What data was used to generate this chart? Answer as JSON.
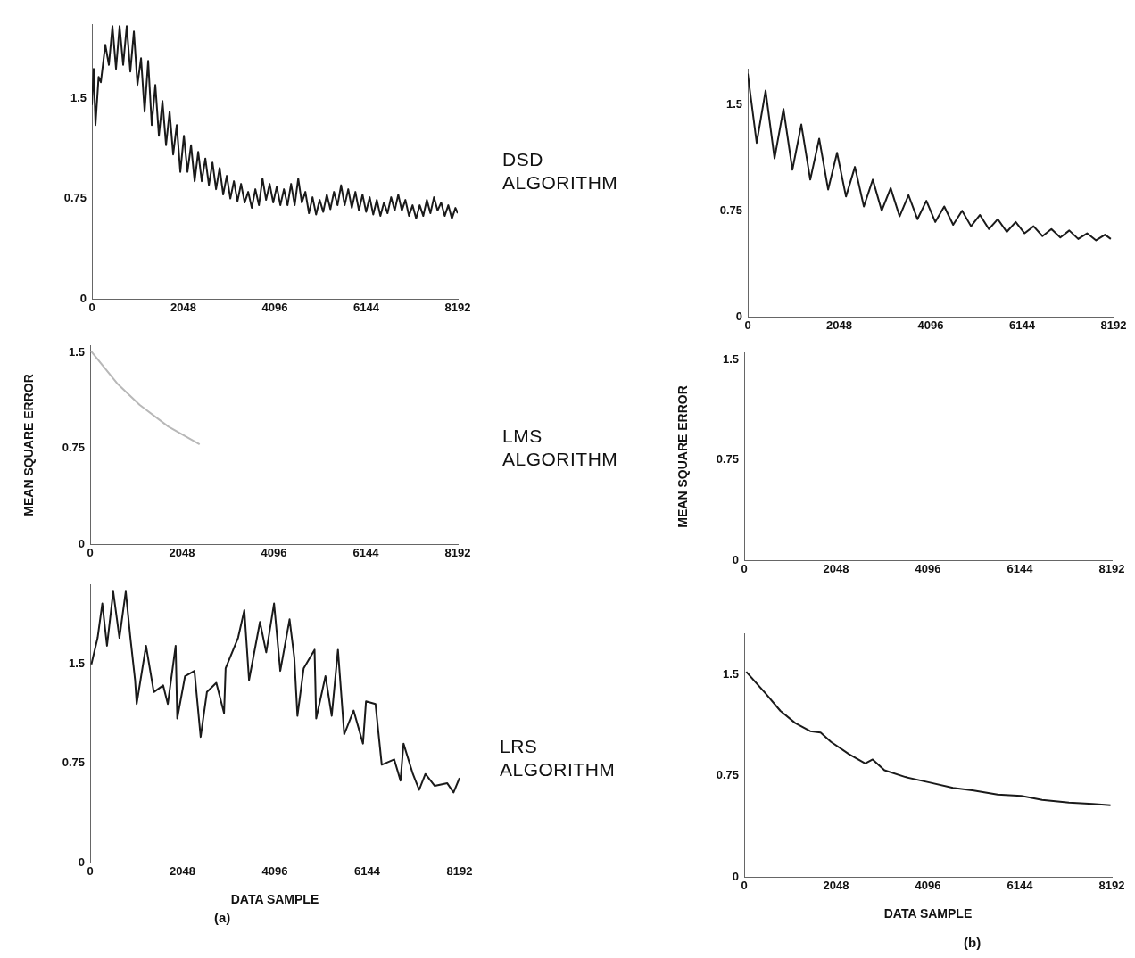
{
  "chart_data": [
    {
      "type": "line",
      "annotations": [
        "DSD ALGORITHM"
      ],
      "xlim": [
        0,
        8192
      ],
      "xticks": [
        0,
        2048,
        4096,
        6144,
        8192
      ],
      "ylim": [
        0,
        2.05
      ],
      "yticks": [
        0,
        0.75,
        1.5
      ],
      "series": [
        {
          "color": "#1a1a1a",
          "x": [
            0,
            40,
            80,
            150,
            200,
            300,
            380,
            460,
            540,
            620,
            700,
            780,
            860,
            940,
            1020,
            1100,
            1180,
            1260,
            1340,
            1420,
            1500,
            1580,
            1660,
            1740,
            1820,
            1900,
            1980,
            2060,
            2140,
            2220,
            2300,
            2380,
            2460,
            2540,
            2620,
            2700,
            2780,
            2860,
            2940,
            3020,
            3100,
            3180,
            3260,
            3340,
            3420,
            3500,
            3580,
            3660,
            3740,
            3820,
            3900,
            3980,
            4060,
            4140,
            4220,
            4300,
            4380,
            4460,
            4540,
            4620,
            4700,
            4780,
            4860,
            4940,
            5020,
            5100,
            5180,
            5260,
            5340,
            5420,
            5500,
            5580,
            5660,
            5740,
            5820,
            5900,
            5980,
            6060,
            6140,
            6220,
            6300,
            6380,
            6460,
            6540,
            6620,
            6700,
            6780,
            6860,
            6940,
            7020,
            7100,
            7180,
            7260,
            7340,
            7420,
            7500,
            7580,
            7660,
            7740,
            7820,
            7900,
            7980,
            8060,
            8140,
            8192
          ],
          "values": [
            1.45,
            1.72,
            1.3,
            1.66,
            1.62,
            1.9,
            1.75,
            2.04,
            1.72,
            2.04,
            1.75,
            2.04,
            1.7,
            2.0,
            1.6,
            1.8,
            1.4,
            1.78,
            1.3,
            1.6,
            1.22,
            1.48,
            1.15,
            1.4,
            1.08,
            1.3,
            0.95,
            1.22,
            0.95,
            1.15,
            0.88,
            1.1,
            0.88,
            1.05,
            0.85,
            1.02,
            0.82,
            0.98,
            0.78,
            0.92,
            0.75,
            0.88,
            0.73,
            0.86,
            0.72,
            0.8,
            0.68,
            0.82,
            0.7,
            0.9,
            0.74,
            0.86,
            0.72,
            0.84,
            0.7,
            0.82,
            0.7,
            0.86,
            0.7,
            0.9,
            0.72,
            0.8,
            0.64,
            0.76,
            0.63,
            0.74,
            0.65,
            0.78,
            0.67,
            0.8,
            0.7,
            0.85,
            0.7,
            0.82,
            0.68,
            0.8,
            0.66,
            0.78,
            0.65,
            0.76,
            0.63,
            0.74,
            0.62,
            0.72,
            0.64,
            0.76,
            0.66,
            0.78,
            0.66,
            0.74,
            0.62,
            0.7,
            0.6,
            0.7,
            0.62,
            0.74,
            0.64,
            0.76,
            0.66,
            0.72,
            0.62,
            0.7,
            0.6,
            0.68,
            0.64
          ]
        }
      ]
    },
    {
      "type": "line",
      "xlim": [
        0,
        8192
      ],
      "xticks": [
        0,
        2048,
        4096,
        6144,
        8192
      ],
      "ylim": [
        0,
        1.75
      ],
      "yticks": [
        0,
        0.75,
        1.5
      ],
      "series": [
        {
          "color": "#1a1a1a",
          "x": [
            0,
            200,
            400,
            600,
            800,
            1000,
            1200,
            1400,
            1600,
            1800,
            2000,
            2200,
            2400,
            2600,
            2800,
            3000,
            3200,
            3400,
            3600,
            3800,
            4000,
            4200,
            4400,
            4600,
            4800,
            5000,
            5200,
            5400,
            5600,
            5800,
            6000,
            6200,
            6400,
            6600,
            6800,
            7000,
            7200,
            7400,
            7600,
            7800,
            8000,
            8130
          ],
          "values": [
            1.72,
            1.23,
            1.6,
            1.12,
            1.47,
            1.04,
            1.36,
            0.97,
            1.26,
            0.9,
            1.16,
            0.85,
            1.06,
            0.78,
            0.97,
            0.75,
            0.91,
            0.71,
            0.86,
            0.69,
            0.82,
            0.67,
            0.78,
            0.65,
            0.75,
            0.64,
            0.72,
            0.62,
            0.69,
            0.6,
            0.67,
            0.59,
            0.64,
            0.57,
            0.62,
            0.56,
            0.61,
            0.55,
            0.59,
            0.54,
            0.58,
            0.55
          ]
        }
      ]
    },
    {
      "type": "line",
      "annotations": [
        "LMS ALGORITHM"
      ],
      "ylabel": "MEAN SQUARE ERROR",
      "xlim": [
        0,
        8192
      ],
      "xticks": [
        0,
        2048,
        4096,
        6144,
        8192
      ],
      "ylim": [
        0,
        1.55
      ],
      "yticks": [
        0,
        0.75,
        1.5
      ],
      "series": [
        {
          "color": "#b8b8b8",
          "x": [
            20,
            620,
            1100,
            1740,
            2440
          ],
          "values": [
            1.51,
            1.25,
            1.09,
            0.92,
            0.78
          ]
        }
      ]
    },
    {
      "type": "line",
      "ylabel": "MEAN SQUARE ERROR",
      "xlim": [
        0,
        8192
      ],
      "xticks": [
        0,
        2048,
        4096,
        6144,
        8192
      ],
      "ylim": [
        0,
        1.55
      ],
      "yticks": [
        0,
        0.75,
        1.5
      ]
    },
    {
      "type": "line",
      "annotations": [
        "LRS ALGORITHM",
        "(a)"
      ],
      "xlabel": "DATA SAMPLE",
      "xlim": [
        0,
        8192
      ],
      "xticks": [
        0,
        2048,
        4096,
        6144,
        8192
      ],
      "ylim": [
        0,
        2.1
      ],
      "yticks": [
        0,
        0.75,
        1.5
      ],
      "series": [
        {
          "color": "#1a1a1a",
          "x": [
            28,
            166,
            270,
            374,
            512,
            650,
            790,
            893,
            997,
            1032,
            1240,
            1412,
            1620,
            1723,
            1897,
            1932,
            2105,
            2313,
            2451,
            2590,
            2798,
            2970,
            3005,
            3281,
            3420,
            3524,
            3766,
            3905,
            4079,
            4217,
            4423,
            4528,
            4597,
            4736,
            4977,
            5013,
            5219,
            5358,
            5496,
            5635,
            5843,
            6051,
            6118,
            6328,
            6467,
            6744,
            6883,
            6950,
            7158,
            7296,
            7435,
            7643,
            7920,
            8059,
            8192
          ],
          "values": [
            1.5,
            1.7,
            1.96,
            1.64,
            2.05,
            1.7,
            2.05,
            1.7,
            1.38,
            1.2,
            1.64,
            1.29,
            1.34,
            1.2,
            1.64,
            1.09,
            1.41,
            1.45,
            0.95,
            1.29,
            1.36,
            1.13,
            1.47,
            1.7,
            1.91,
            1.38,
            1.82,
            1.59,
            1.96,
            1.45,
            1.84,
            1.55,
            1.11,
            1.47,
            1.61,
            1.09,
            1.41,
            1.11,
            1.61,
            0.97,
            1.15,
            0.9,
            1.22,
            1.2,
            0.74,
            0.78,
            0.62,
            0.9,
            0.67,
            0.55,
            0.67,
            0.58,
            0.6,
            0.53,
            0.64
          ]
        }
      ]
    },
    {
      "type": "line",
      "annotations": [
        "(b)"
      ],
      "xlabel": "DATA SAMPLE",
      "xlim": [
        0,
        8192
      ],
      "xticks": [
        0,
        2048,
        4096,
        6144,
        8192
      ],
      "ylim": [
        0,
        1.8
      ],
      "yticks": [
        0,
        0.75,
        1.5
      ],
      "series": [
        {
          "color": "#1a1a1a",
          "x": [
            46,
            477,
            808,
            1139,
            1471,
            1704,
            1935,
            2333,
            2697,
            2863,
            3127,
            3592,
            4122,
            4652,
            5115,
            5646,
            6176,
            6640,
            7236,
            7767,
            8164
          ],
          "values": [
            1.52,
            1.36,
            1.23,
            1.14,
            1.08,
            1.07,
            1.0,
            0.91,
            0.84,
            0.87,
            0.79,
            0.74,
            0.7,
            0.66,
            0.64,
            0.61,
            0.6,
            0.57,
            0.55,
            0.54,
            0.53
          ]
        }
      ]
    }
  ]
}
